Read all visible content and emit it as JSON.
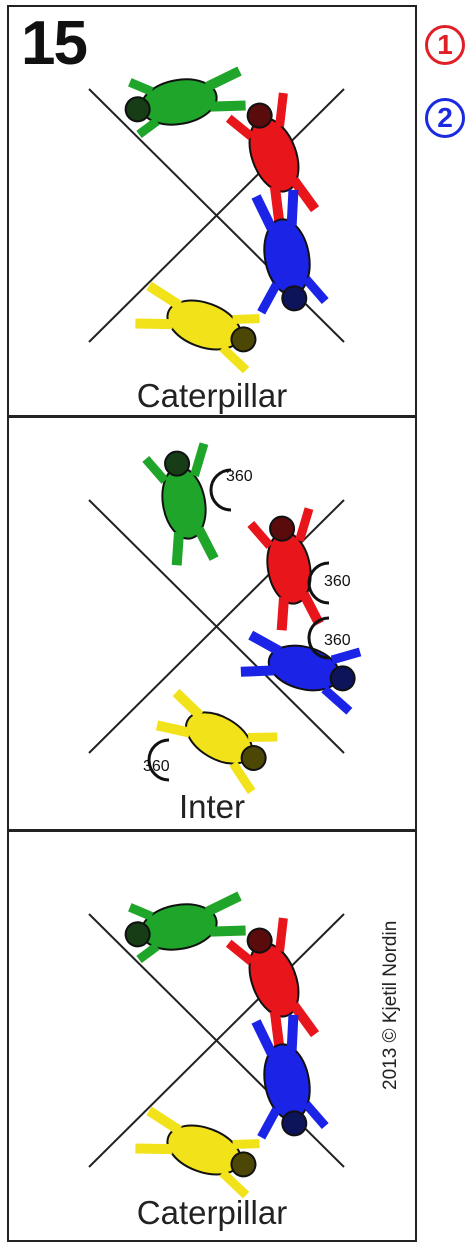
{
  "formation_number": "15",
  "slot_markers": [
    {
      "label": "1",
      "color": "#e01f26"
    },
    {
      "label": "2",
      "color": "#1a2ae0"
    }
  ],
  "panels": [
    {
      "caption": "Caterpillar"
    },
    {
      "caption": "Inter",
      "rotation_labels": [
        "360",
        "360",
        "360",
        "360"
      ]
    },
    {
      "caption": "Caterpillar"
    }
  ],
  "copyright": "2013 © Kjetil Nordin",
  "colors": {
    "green": "#1fa52a",
    "red": "#e8151b",
    "blue": "#1a23e6",
    "yellow": "#f1e21a"
  }
}
